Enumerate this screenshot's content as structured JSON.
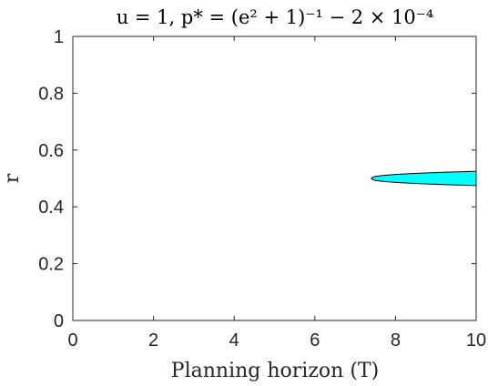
{
  "chart_data": {
    "type": "area",
    "title": "u = 1, p* = (e² + 1)⁻¹ − 2 × 10⁻⁴",
    "xlabel": "Planning horizon (T)",
    "ylabel": "r",
    "xlim": [
      0,
      10
    ],
    "ylim": [
      0,
      1
    ],
    "x_ticks": [
      "0",
      "2",
      "4",
      "6",
      "8",
      "10"
    ],
    "y_ticks": [
      "0",
      "0.2",
      "0.4",
      "0.6",
      "0.8",
      "1"
    ],
    "grid": false,
    "region": {
      "x_start": 7.4,
      "x_end": 10,
      "r_center": 0.5,
      "r_halfwidth_at_x_end": 0.025,
      "fill_color": "#00ffff",
      "edge_color": "#000000"
    }
  }
}
